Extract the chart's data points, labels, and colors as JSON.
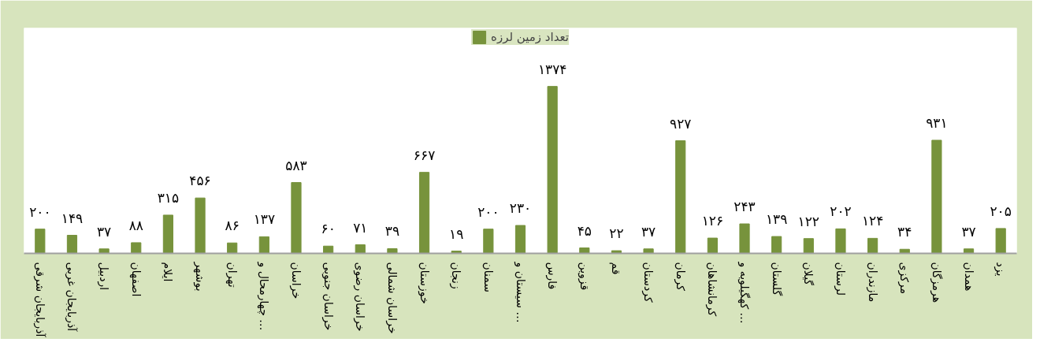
{
  "chart_data": {
    "type": "bar",
    "legend": "top",
    "grid": false,
    "categories": [
      "آذربایجان شرقی",
      "آذربایجان غربی",
      "اردبیل",
      "اصفهان",
      "ایلام",
      "بوشهر",
      "تهران",
      "چهارمحال و …",
      "خراسان",
      "خراسان جنوبی",
      "خراسان رضوی",
      "خراسان شمالی",
      "خوزستان",
      "زنجان",
      "سمنان",
      "سیستان و …",
      "فارس",
      "قزوین",
      "قم",
      "کردستان",
      "کرمان",
      "کرمانشاهان",
      "کهگیلویه و …",
      "گلستان",
      "گیلان",
      "لرستان",
      "مازندران",
      "مرکزی",
      "هرمزگان",
      "همدان",
      "یزد"
    ],
    "series": [
      {
        "name": "تعداد زمین لرزه",
        "color": "#77933c",
        "values": [
          200,
          149,
          37,
          88,
          315,
          456,
          86,
          137,
          583,
          60,
          71,
          39,
          667,
          19,
          200,
          230,
          1374,
          45,
          22,
          37,
          927,
          126,
          243,
          139,
          122,
          202,
          124,
          34,
          931,
          37,
          205
        ],
        "value_labels": [
          "۲۰۰",
          "۱۴۹",
          "۳۷",
          "۸۸",
          "۳۱۵",
          "۴۵۶",
          "۸۶",
          "۱۳۷",
          "۵۸۳",
          "۶۰",
          "۷۱",
          "۳۹",
          "۶۶۷",
          "۱۹",
          "۲۰۰",
          "۲۳۰",
          "۱۳۷۴",
          "۴۵",
          "۲۲",
          "۳۷",
          "۹۲۷",
          "۱۲۶",
          "۲۴۳",
          "۱۳۹",
          "۱۲۲",
          "۲۰۲",
          "۱۲۴",
          "۳۴",
          "۹۳۱",
          "۳۷",
          "۲۰۵"
        ]
      }
    ]
  }
}
